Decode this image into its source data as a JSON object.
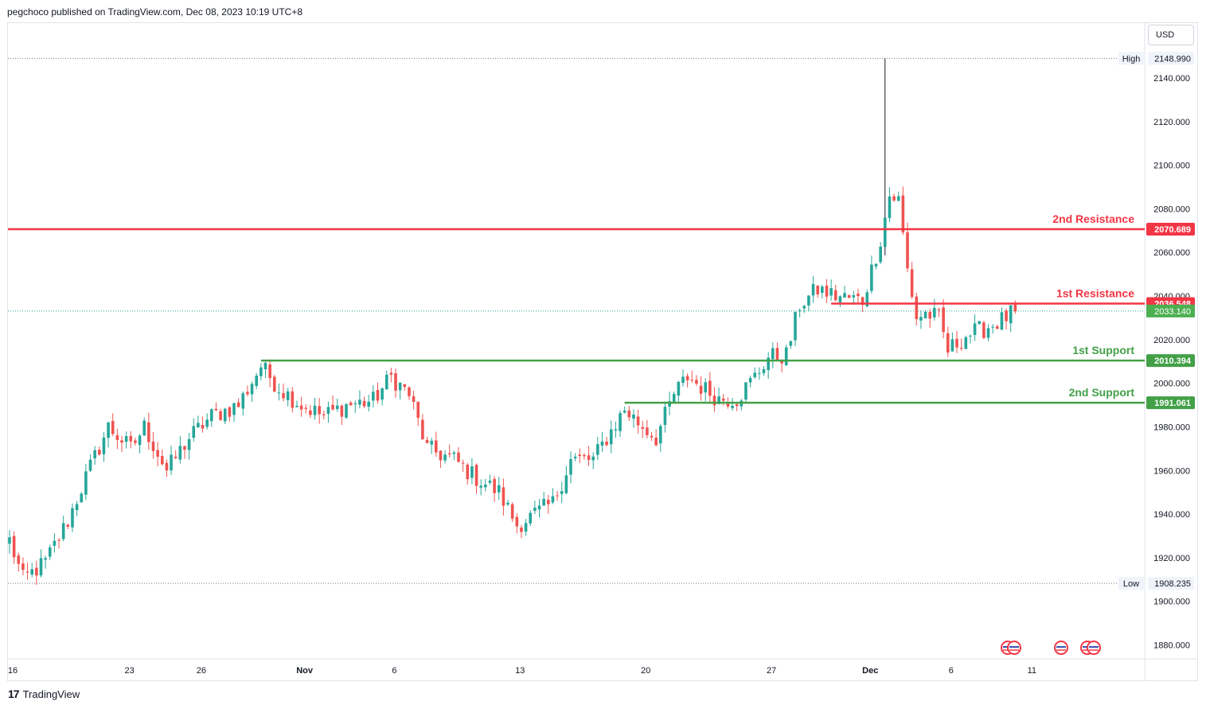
{
  "header": {
    "published": "pegchoco published on TradingView.com, Dec 08, 2023 10:19 UTC+8"
  },
  "currency": "USD",
  "footer": {
    "logo_mark": "17",
    "brand": "TradingView"
  },
  "chart_data": {
    "type": "candlestick",
    "y_range": [
      1871,
      2157
    ],
    "price_ticks": [
      "2140.000",
      "2120.000",
      "2100.000",
      "2080.000",
      "2060.000",
      "2040.000",
      "2020.000",
      "2000.000",
      "1980.000",
      "1960.000",
      "1940.000",
      "1920.000",
      "1900.000",
      "1880.000"
    ],
    "x_ticks": [
      {
        "label": "16",
        "i": 0
      },
      {
        "label": "23",
        "i": 26
      },
      {
        "label": "26",
        "i": 42
      },
      {
        "label": "Nov",
        "i": 65
      },
      {
        "label": "6",
        "i": 85
      },
      {
        "label": "13",
        "i": 113
      },
      {
        "label": "20",
        "i": 141
      },
      {
        "label": "27",
        "i": 169
      },
      {
        "label": "Dec",
        "i": 191
      },
      {
        "label": "6",
        "i": 209
      },
      {
        "label": "11",
        "i": 227
      }
    ],
    "high": {
      "label": "High",
      "value": "2148.990",
      "price": 2148.99
    },
    "low": {
      "label": "Low",
      "value": "1908.235",
      "price": 1908.235
    },
    "last_price": {
      "value": "2033.140",
      "price": 2033.14,
      "color": "#4caf50"
    },
    "levels": [
      {
        "name": "2nd Resistance",
        "value": "2070.689",
        "price": 2070.689,
        "color": "#f23645",
        "start_i": -1
      },
      {
        "name": "1st Resistance",
        "value": "2036.548",
        "price": 2036.548,
        "color": "#f23645",
        "start_i": 183
      },
      {
        "name": "1st Support",
        "value": "2010.394",
        "price": 2010.394,
        "color": "#43a047",
        "start_i": 56
      },
      {
        "name": "2nd Support",
        "value": "1991.061",
        "price": 1991.061,
        "color": "#43a047",
        "start_i": 137
      }
    ],
    "keypoints": [
      [
        0,
        1928
      ],
      [
        3,
        1910
      ],
      [
        8,
        1918
      ],
      [
        13,
        1937
      ],
      [
        17,
        1957
      ],
      [
        22,
        1980
      ],
      [
        27,
        1970
      ],
      [
        30,
        1980
      ],
      [
        35,
        1960
      ],
      [
        40,
        1975
      ],
      [
        45,
        1985
      ],
      [
        51,
        1990
      ],
      [
        56,
        2008
      ],
      [
        60,
        1998
      ],
      [
        65,
        1990
      ],
      [
        70,
        1985
      ],
      [
        75,
        1990
      ],
      [
        81,
        1992
      ],
      [
        85,
        2003
      ],
      [
        89,
        1995
      ],
      [
        93,
        1970
      ],
      [
        99,
        1965
      ],
      [
        103,
        1958
      ],
      [
        109,
        1950
      ],
      [
        113,
        1935
      ],
      [
        117,
        1940
      ],
      [
        121,
        1945
      ],
      [
        125,
        1965
      ],
      [
        130,
        1965
      ],
      [
        133,
        1975
      ],
      [
        137,
        1988
      ],
      [
        140,
        1982
      ],
      [
        144,
        1975
      ],
      [
        148,
        1995
      ],
      [
        151,
        2003
      ],
      [
        155,
        1997
      ],
      [
        158,
        1993
      ],
      [
        162,
        1993
      ],
      [
        166,
        2003
      ],
      [
        169,
        2012
      ],
      [
        173,
        2013
      ],
      [
        176,
        2036
      ],
      [
        180,
        2043
      ],
      [
        184,
        2040
      ],
      [
        190,
        2038
      ],
      [
        194,
        2066
      ],
      [
        196,
        2086
      ],
      [
        198,
        2084
      ],
      [
        200,
        2052
      ],
      [
        202,
        2030
      ],
      [
        204,
        2032
      ],
      [
        207,
        2030
      ],
      [
        209,
        2015
      ],
      [
        213,
        2022
      ],
      [
        217,
        2025
      ],
      [
        221,
        2029
      ],
      [
        224,
        2033
      ]
    ],
    "spike": {
      "i": 195,
      "high": 2148.99
    },
    "bull_color": "#26a69a",
    "bear_color": "#ef5350"
  }
}
